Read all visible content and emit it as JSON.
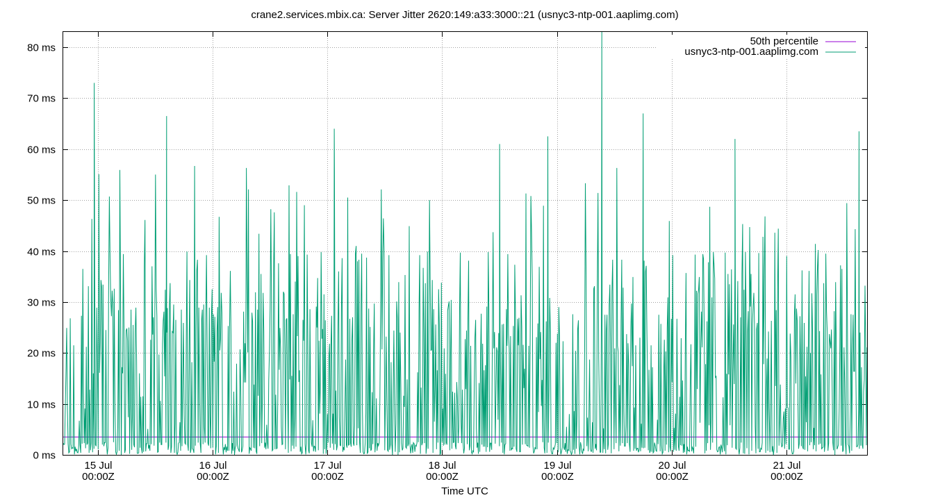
{
  "chart_data": {
    "type": "line",
    "title": "crane2.services.mbix.ca: Server Jitter 2620:149:a33:3000::21 (usnyc3-ntp-001.aaplimg.com)",
    "xlabel": "Time UTC",
    "ylabel": "",
    "ylim": [
      0,
      83
    ],
    "xlim": [
      14.7,
      21.7
    ],
    "y_ticks": [
      0,
      10,
      20,
      30,
      40,
      50,
      60,
      70,
      80
    ],
    "y_tick_labels": [
      "0 ms",
      "10 ms",
      "20 ms",
      "30 ms",
      "40 ms",
      "50 ms",
      "60 ms",
      "70 ms",
      "80 ms"
    ],
    "x_ticks": [
      15,
      16,
      17,
      18,
      19,
      20,
      21
    ],
    "x_tick_labels": [
      [
        "15 Jul",
        "00:00Z"
      ],
      [
        "16 Jul",
        "00:00Z"
      ],
      [
        "17 Jul",
        "00:00Z"
      ],
      [
        "18 Jul",
        "00:00Z"
      ],
      [
        "19 Jul",
        "00:00Z"
      ],
      [
        "20 Jul",
        "00:00Z"
      ],
      [
        "21 Jul",
        "00:00Z"
      ]
    ],
    "grid": true,
    "legend_position": "top-right",
    "series": [
      {
        "name": "50th percentile",
        "color": "#9400d3",
        "values": [
          [
            14.7,
            3.5
          ],
          [
            21.7,
            3.5
          ]
        ]
      },
      {
        "name": "usnyc3-ntp-001.aaplimg.com",
        "color": "#009e73",
        "values": []
      }
    ],
    "notable_peaks": [
      {
        "x": 14.97,
        "y": 73
      },
      {
        "x": 15.6,
        "y": 66.5
      },
      {
        "x": 17.06,
        "y": 64
      },
      {
        "x": 18.5,
        "y": 61
      },
      {
        "x": 18.92,
        "y": 62.5
      },
      {
        "x": 19.39,
        "y": 83
      },
      {
        "x": 19.75,
        "y": 67
      },
      {
        "x": 20.55,
        "y": 62
      },
      {
        "x": 21.63,
        "y": 63.5
      }
    ]
  }
}
